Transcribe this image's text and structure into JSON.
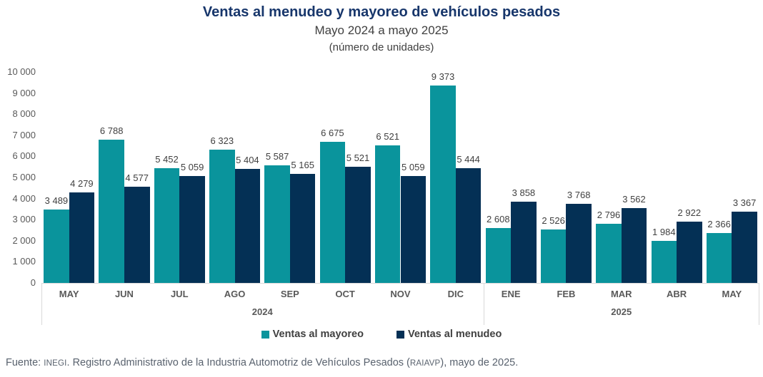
{
  "chart_data": {
    "type": "bar",
    "title": "Ventas al menudeo y mayoreo de vehículos pesados",
    "subtitle": "Mayo 2024 a mayo 2025",
    "units_note": "(número de unidades)",
    "categories": [
      "MAY",
      "JUN",
      "JUL",
      "AGO",
      "SEP",
      "OCT",
      "NOV",
      "DIC",
      "ENE",
      "FEB",
      "MAR",
      "ABR",
      "MAY"
    ],
    "year_groups": [
      {
        "label": "2024",
        "span": 8
      },
      {
        "label": "2025",
        "span": 5
      }
    ],
    "series": [
      {
        "name": "Ventas al mayoreo",
        "color": "#0a949c",
        "values": [
          3489,
          6788,
          5452,
          6323,
          5587,
          6675,
          6521,
          9373,
          2608,
          2526,
          2796,
          1984,
          2366
        ],
        "labels": [
          "3 489",
          "6 788",
          "5 452",
          "6 323",
          "5 587",
          "6 675",
          "6 521",
          "9 373",
          "2 608",
          "2 526",
          "2 796",
          "1 984",
          "2 366"
        ]
      },
      {
        "name": "Ventas al menudeo",
        "color": "#043055",
        "values": [
          4279,
          4577,
          5059,
          5404,
          5165,
          5521,
          5059,
          5444,
          3858,
          3768,
          3562,
          2922,
          3367
        ],
        "labels": [
          "4 279",
          "4 577",
          "5 059",
          "5 404",
          "5 165",
          "5 521",
          "5 059",
          "5 444",
          "3 858",
          "3 768",
          "3 562",
          "2 922",
          "3 367"
        ]
      }
    ],
    "ylim": [
      0,
      10000
    ],
    "ytick_step": 1000,
    "ytick_labels": [
      "0",
      "1 000",
      "2 000",
      "3 000",
      "4 000",
      "5 000",
      "6 000",
      "7 000",
      "8 000",
      "9 000",
      "10 000"
    ],
    "grid": false,
    "legend_position": "bottom"
  },
  "colors": {
    "title": "#17366b",
    "axis_line": "#d9d9d9",
    "tick_text": "#595959",
    "label_text": "#404040",
    "source_text": "#59626e"
  },
  "source": {
    "prefix": "Fuente: ",
    "org": "INEGI",
    "middle": ". Registro Administrativo de la Industria Automotriz de Vehículos Pesados (",
    "acronym": "RAIAVP",
    "suffix": "), mayo de 2025."
  }
}
